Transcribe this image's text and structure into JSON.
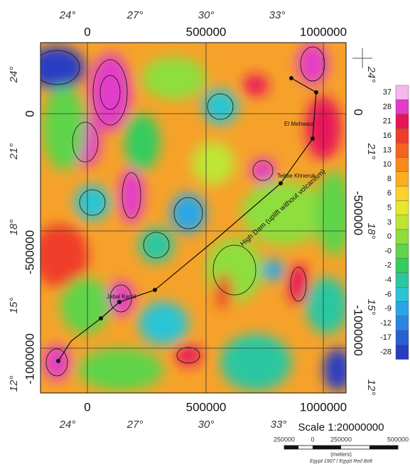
{
  "map": {
    "top_degrees": [
      "24°",
      "27°",
      "30°",
      "33°"
    ],
    "top_meters": [
      "0",
      "500000",
      "1000000"
    ],
    "left_degrees": [
      "24°",
      "21°",
      "18°",
      "15°",
      "12°"
    ],
    "left_meters": [
      "0",
      "-500000",
      "-1000000"
    ],
    "right_degrees": [
      "24°",
      "21°",
      "18°",
      "15°",
      "12°"
    ],
    "right_meters": [
      "0",
      "-500000",
      "-1000000"
    ],
    "bottom_meters": [
      "0",
      "500000",
      "1000000"
    ],
    "bottom_degrees": [
      "24°",
      "27°",
      "30°",
      "33°"
    ],
    "places": [
      "Tebbe Khneruk",
      "Jabal Kamil",
      "El Mehwara",
      "High Dam (uplift without volcanism)"
    ]
  },
  "legend": {
    "labels": [
      "37",
      "28",
      "21",
      "16",
      "13",
      "10",
      "8",
      "6",
      "5",
      "3",
      "0",
      "-0",
      "-2",
      "-4",
      "-6",
      "-9",
      "-12",
      "-17",
      "-28"
    ],
    "colors": [
      "#f7b6f0",
      "#e23cc8",
      "#e8145a",
      "#f03c2a",
      "#f46420",
      "#f88a1c",
      "#fbae22",
      "#fcd22a",
      "#e6e82c",
      "#bde634",
      "#8ede3c",
      "#5fd44a",
      "#34cc5e",
      "#2cc7a0",
      "#2cc4d4",
      "#2aa6e6",
      "#2a84e2",
      "#2860d4",
      "#2a3cc2"
    ]
  },
  "scale": {
    "title": "Scale 1:20000000",
    "ticks": [
      "250000",
      "0",
      "250000",
      "500000"
    ],
    "unit": "(meters)",
    "datum": "Egypt 1907 / Egypt Red Belt"
  }
}
